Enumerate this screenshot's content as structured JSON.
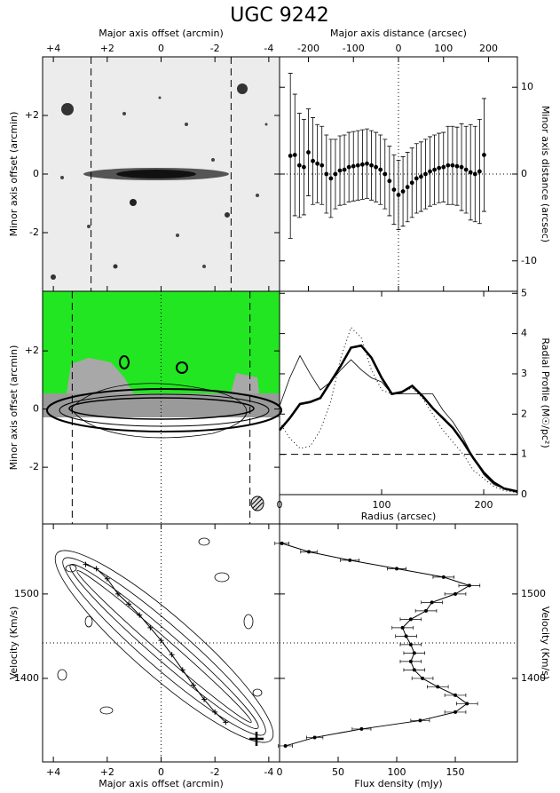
{
  "title": "UGC 9242",
  "chart_data": [
    {
      "type": "image",
      "xlabel": "Major axis offset (arcmin)",
      "ylabel": "Minor axis offset (arcmin)",
      "xlim": [
        4.4,
        -4.4
      ],
      "xticks": [
        {
          "value": 4,
          "label": "+4"
        },
        {
          "value": 2,
          "label": "+2"
        },
        0,
        -2,
        -4
      ],
      "xticks_side": "top",
      "ylim": [
        -4,
        4
      ],
      "yticks": [
        {
          "value": 2,
          "label": "+2"
        },
        0,
        -2
      ],
      "yticks_side": "left",
      "dashed_x": [
        2.6,
        -2.6
      ]
    },
    {
      "type": "errorbar",
      "xlabel": "Major axis distance (arcsec)",
      "ylabel": "Minor axis distance (arcsec)",
      "xlim": [
        -264,
        264
      ],
      "xticks": [
        -200,
        -100,
        0,
        100,
        200
      ],
      "xticks_side": "top",
      "ylim": [
        -13.5,
        13.5
      ],
      "yticks": [
        10,
        0,
        -10
      ],
      "yticks_side": "right",
      "ref_x": 0,
      "ref_y": 0,
      "color": "#000",
      "x": [
        -240,
        -230,
        -220,
        -210,
        -200,
        -190,
        -180,
        -170,
        -160,
        -150,
        -140,
        -130,
        -120,
        -110,
        -100,
        -90,
        -80,
        -70,
        -60,
        -50,
        -40,
        -30,
        -20,
        -10,
        0,
        10,
        20,
        30,
        40,
        50,
        60,
        70,
        80,
        90,
        100,
        110,
        120,
        130,
        140,
        150,
        160,
        170,
        180,
        190
      ],
      "values": [
        2.1,
        2.2,
        1.0,
        0.8,
        2.5,
        1.5,
        1.2,
        1.0,
        0.0,
        -0.5,
        0.0,
        0.4,
        0.5,
        0.8,
        0.9,
        1.0,
        1.1,
        1.2,
        1.0,
        0.8,
        0.5,
        0.0,
        -0.8,
        -1.8,
        -2.4,
        -2.0,
        -1.5,
        -1.0,
        -0.5,
        -0.3,
        0.0,
        0.3,
        0.5,
        0.7,
        0.8,
        1.0,
        1.0,
        0.9,
        0.8,
        0.5,
        0.2,
        0.0,
        0.3,
        2.2
      ],
      "errors": [
        9.5,
        7,
        6,
        5.5,
        5,
        5,
        4.5,
        4.5,
        4.5,
        4.5,
        4,
        4,
        4,
        4,
        4,
        4,
        4,
        4,
        4,
        4,
        4,
        4,
        4,
        4,
        4,
        4,
        4,
        4,
        4,
        4,
        4,
        4,
        4,
        4,
        4,
        4.5,
        4.5,
        4.5,
        5,
        5,
        5.5,
        5.5,
        6,
        6.5
      ]
    },
    {
      "type": "image",
      "ylabel": "Minor axis offset (arcmin)",
      "xlim": [
        4.4,
        -4.4
      ],
      "ylim": [
        -3.95,
        4.05
      ],
      "yticks": [
        {
          "value": 2,
          "label": "+2"
        },
        0,
        -2
      ],
      "yticks_side": "left",
      "ref_x": 0,
      "dashed_x": [
        3.3,
        -3.3
      ]
    },
    {
      "type": "line",
      "xlabel": "Radius (arcsec)",
      "ylabel": "Radial Profile (M☉/pc²)",
      "xlim": [
        0,
        233
      ],
      "xticks": [
        0,
        100,
        200
      ],
      "xticks_side": "bottom",
      "ylim": [
        0,
        5.05
      ],
      "yticks": [
        0,
        1,
        2,
        3,
        4,
        5
      ],
      "yticks_side": "right",
      "dashed_y": [
        1
      ],
      "x": [
        0,
        10,
        20,
        30,
        40,
        50,
        60,
        70,
        80,
        90,
        100,
        110,
        120,
        130,
        140,
        150,
        160,
        170,
        180,
        190,
        200,
        210,
        220,
        233
      ],
      "series": [
        {
          "color": "#000",
          "width": 2.6,
          "dash": "none",
          "values": [
            1.6,
            1.9,
            2.25,
            2.3,
            2.4,
            2.8,
            3.2,
            3.65,
            3.7,
            3.4,
            2.9,
            2.5,
            2.55,
            2.7,
            2.45,
            2.15,
            1.9,
            1.65,
            1.3,
            0.9,
            0.55,
            0.3,
            0.15,
            0.08
          ]
        },
        {
          "color": "#000",
          "width": 0.8,
          "dash": "none",
          "values": [
            2.2,
            2.9,
            3.45,
            3.0,
            2.6,
            2.8,
            3.1,
            3.35,
            3.1,
            2.9,
            2.8,
            2.5,
            2.5,
            2.5,
            2.5,
            2.5,
            2.1,
            1.8,
            1.4,
            0.9,
            0.5,
            0.25,
            0.15,
            0.05
          ]
        },
        {
          "color": "#000",
          "width": 1,
          "dash": "1 3",
          "values": [
            1.8,
            1.4,
            1.15,
            1.2,
            1.6,
            2.3,
            3.4,
            4.15,
            3.9,
            3.1,
            2.6,
            2.5,
            2.55,
            2.65,
            2.4,
            2.0,
            1.6,
            1.3,
            1.0,
            0.6,
            0.4,
            0.2,
            0.1,
            0.05
          ]
        }
      ]
    },
    {
      "type": "line",
      "markers": "cross",
      "xlabel": "Major axis offset (arcmin)",
      "ylabel": "Velocity (Km/s)",
      "xlim": [
        4.4,
        -4.4
      ],
      "xticks": [
        {
          "value": 4,
          "label": "+4"
        },
        {
          "value": 2,
          "label": "+2"
        },
        0,
        -2,
        -4
      ],
      "xticks_side": "bottom",
      "ylim": [
        1301,
        1583
      ],
      "yticks": [
        1400,
        1500
      ],
      "yticks_side": "left",
      "ref_x": 0,
      "ref_y": 1442,
      "color": "#000",
      "x": [
        2.8,
        2.4,
        2.0,
        1.6,
        1.2,
        0.8,
        0.4,
        0,
        -0.4,
        -0.8,
        -1.2,
        -1.6,
        -2.0,
        -2.4
      ],
      "values": [
        1535,
        1530,
        1518,
        1500,
        1488,
        1475,
        1460,
        1445,
        1428,
        1410,
        1392,
        1375,
        1360,
        1348
      ]
    },
    {
      "type": "line",
      "orientation": "horizontal",
      "markers": "dot",
      "xlabel": "Flux density (mJy)",
      "ylabel": "Velocity (Km/s)",
      "xlim": [
        0,
        203
      ],
      "xticks": [
        0,
        50,
        100,
        150
      ],
      "xticks_side": "bottom",
      "ylim": [
        1301,
        1583
      ],
      "yticks": [
        1400,
        1500
      ],
      "yticks_side": "right",
      "ref_y": 1442,
      "color": "#000",
      "y": [
        1320,
        1330,
        1340,
        1350,
        1360,
        1370,
        1380,
        1390,
        1400,
        1410,
        1420,
        1430,
        1440,
        1450,
        1460,
        1470,
        1480,
        1490,
        1500,
        1510,
        1520,
        1530,
        1540,
        1550,
        1560
      ],
      "values": [
        5,
        30,
        70,
        120,
        150,
        160,
        150,
        135,
        122,
        115,
        112,
        115,
        112,
        108,
        105,
        112,
        125,
        130,
        150,
        162,
        140,
        100,
        60,
        25,
        2
      ],
      "errors": [
        6,
        7,
        8,
        8,
        9,
        9,
        9,
        9,
        9,
        9,
        9,
        9,
        9,
        9,
        9,
        9,
        9,
        9,
        9,
        9,
        9,
        8,
        8,
        7,
        6
      ]
    }
  ]
}
